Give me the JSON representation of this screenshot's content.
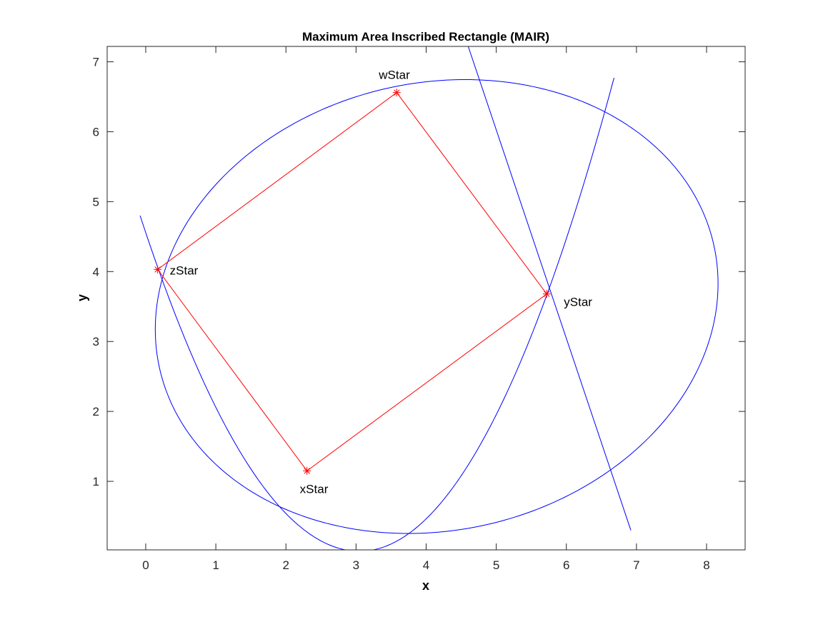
{
  "chart_data": {
    "type": "line",
    "title": "Maximum Area Inscribed Rectangle (MAIR)",
    "xlabel": "x",
    "ylabel": "y",
    "xlim": [
      -0.55,
      8.55
    ],
    "ylim": [
      0.02,
      7.22
    ],
    "xticks": [
      0,
      1,
      2,
      3,
      4,
      5,
      6,
      7,
      8
    ],
    "yticks": [
      1,
      2,
      3,
      4,
      5,
      6,
      7
    ],
    "grid": false,
    "colors": {
      "curves": "#0000ff",
      "rectangle": "#ff0000",
      "axes": "#262626"
    },
    "ellipse": {
      "center": [
        4.15,
        3.5
      ],
      "semi_axes": [
        4.05,
        3.2
      ],
      "rotation_deg": 12.6
    },
    "parabola": {
      "vertex": [
        3.05,
        0.0
      ],
      "opening": "up",
      "x_range": [
        -0.08,
        6.68
      ],
      "y_end": [
        4.8,
        6.77
      ]
    },
    "line": {
      "points": [
        [
          4.6,
          7.22
        ],
        [
          6.92,
          0.3
        ]
      ]
    },
    "points": [
      {
        "name": "xStar",
        "label": "xStar",
        "x": 2.3,
        "y": 1.15
      },
      {
        "name": "yStar",
        "label": "yStar",
        "x": 5.72,
        "y": 3.68
      },
      {
        "name": "wStar",
        "label": "wStar",
        "x": 3.58,
        "y": 6.56
      },
      {
        "name": "zStar",
        "label": "zStar",
        "x": 0.17,
        "y": 4.03
      }
    ],
    "rectangle_order": [
      "xStar",
      "yStar",
      "wStar",
      "zStar"
    ]
  }
}
